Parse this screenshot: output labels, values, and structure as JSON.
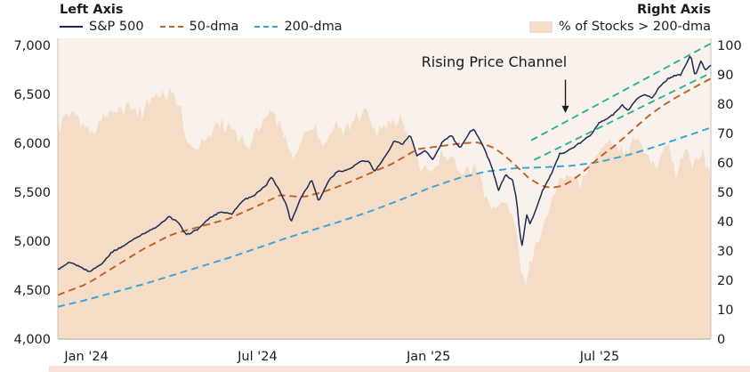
{
  "figure": {
    "left_axis_title": "Left Axis",
    "right_axis_title": "Right Axis",
    "background_color": "#ffffff",
    "plot_background_color": "#f9f1ec",
    "bottom_strip_color": "#f9e3da",
    "text_color": "#1b1b1b",
    "axis_line_color": "#c8c0ba"
  },
  "legend": {
    "left_items": [
      {
        "label": "S&P 500",
        "style": "solid",
        "color": "#1b2a52"
      },
      {
        "label": "50-dma",
        "style": "dashed",
        "color": "#c05f24"
      },
      {
        "label": "200-dma",
        "style": "dashed",
        "color": "#35a3d7"
      }
    ],
    "right_items": [
      {
        "label": "% of Stocks > 200-dma",
        "style": "area",
        "color": "#f5dcc7"
      }
    ]
  },
  "chart_data": {
    "type": "line+area",
    "title": "",
    "x_axis": {
      "unit": "months since Jan 2024 (fractional)",
      "range_months": [
        -1.0,
        21.9
      ],
      "ticks": [
        {
          "m": 0,
          "label": "Jan '24"
        },
        {
          "m": 6,
          "label": "Jul '24"
        },
        {
          "m": 12,
          "label": "Jan '25"
        },
        {
          "m": 18,
          "label": "Jul '25"
        }
      ]
    },
    "left_axis": {
      "title": "S&P 500 index level",
      "min": 4000,
      "max": 7000,
      "ticks": [
        {
          "v": 7000,
          "label": "7,000"
        },
        {
          "v": 6500,
          "label": "6,500"
        },
        {
          "v": 6000,
          "label": "6,000"
        },
        {
          "v": 5500,
          "label": "5,500"
        },
        {
          "v": 5000,
          "label": "5,000"
        },
        {
          "v": 4500,
          "label": "4,500"
        },
        {
          "v": 4000,
          "label": "4,000"
        }
      ]
    },
    "right_axis": {
      "title": "% of Stocks > 200-dma",
      "min": 0,
      "max": 100,
      "ticks": [
        {
          "v": 100,
          "label": "100"
        },
        {
          "v": 90,
          "label": "90"
        },
        {
          "v": 80,
          "label": "80"
        },
        {
          "v": 70,
          "label": "70"
        },
        {
          "v": 60,
          "label": "60"
        },
        {
          "v": 50,
          "label": "50"
        },
        {
          "v": 40,
          "label": "40"
        },
        {
          "v": 30,
          "label": "30"
        },
        {
          "v": 20,
          "label": "20"
        },
        {
          "v": 10,
          "label": "10"
        },
        {
          "v": 0,
          "label": "0"
        }
      ]
    },
    "annotation": {
      "text": "Rising Price Channel",
      "text_month": 14.3,
      "text_value": 6780,
      "arrow_month": 16.8,
      "arrow_from_value": 6650,
      "arrow_to_value": 6310
    },
    "series": [
      {
        "name": "S&P 500",
        "axis": "left",
        "render": "line",
        "dash": "solid",
        "color": "#1b2a52",
        "width": 1.5,
        "points": [
          [
            -1.0,
            4710
          ],
          [
            -0.6,
            4780
          ],
          [
            -0.3,
            4750
          ],
          [
            0.1,
            4690
          ],
          [
            0.5,
            4760
          ],
          [
            0.9,
            4890
          ],
          [
            1.3,
            4950
          ],
          [
            1.7,
            5030
          ],
          [
            2.1,
            5090
          ],
          [
            2.5,
            5150
          ],
          [
            2.9,
            5250
          ],
          [
            3.2,
            5200
          ],
          [
            3.5,
            5060
          ],
          [
            3.9,
            5120
          ],
          [
            4.3,
            5230
          ],
          [
            4.7,
            5300
          ],
          [
            5.1,
            5280
          ],
          [
            5.5,
            5420
          ],
          [
            5.9,
            5470
          ],
          [
            6.3,
            5570
          ],
          [
            6.5,
            5660
          ],
          [
            6.8,
            5500
          ],
          [
            7.05,
            5350
          ],
          [
            7.17,
            5190
          ],
          [
            7.5,
            5430
          ],
          [
            7.9,
            5630
          ],
          [
            8.15,
            5410
          ],
          [
            8.5,
            5620
          ],
          [
            8.8,
            5710
          ],
          [
            9.2,
            5730
          ],
          [
            9.6,
            5810
          ],
          [
            9.9,
            5820
          ],
          [
            10.1,
            5710
          ],
          [
            10.5,
            5870
          ],
          [
            10.8,
            6030
          ],
          [
            11.1,
            5990
          ],
          [
            11.35,
            6090
          ],
          [
            11.6,
            5870
          ],
          [
            11.9,
            5930
          ],
          [
            12.15,
            5830
          ],
          [
            12.5,
            6020
          ],
          [
            12.8,
            6080
          ],
          [
            13.1,
            5950
          ],
          [
            13.45,
            6120
          ],
          [
            13.6,
            6140
          ],
          [
            13.9,
            5980
          ],
          [
            14.2,
            5770
          ],
          [
            14.45,
            5520
          ],
          [
            14.7,
            5680
          ],
          [
            14.95,
            5620
          ],
          [
            15.1,
            5400
          ],
          [
            15.2,
            5070
          ],
          [
            15.28,
            4960
          ],
          [
            15.45,
            5280
          ],
          [
            15.55,
            5170
          ],
          [
            15.75,
            5310
          ],
          [
            16.0,
            5520
          ],
          [
            16.3,
            5680
          ],
          [
            16.6,
            5890
          ],
          [
            16.85,
            5920
          ],
          [
            17.1,
            5960
          ],
          [
            17.4,
            6020
          ],
          [
            17.7,
            6090
          ],
          [
            17.95,
            6200
          ],
          [
            18.2,
            6240
          ],
          [
            18.5,
            6300
          ],
          [
            18.8,
            6390
          ],
          [
            19.0,
            6330
          ],
          [
            19.3,
            6450
          ],
          [
            19.6,
            6500
          ],
          [
            19.85,
            6460
          ],
          [
            20.1,
            6580
          ],
          [
            20.4,
            6660
          ],
          [
            20.6,
            6690
          ],
          [
            20.85,
            6700
          ],
          [
            21.05,
            6820
          ],
          [
            21.2,
            6900
          ],
          [
            21.35,
            6680
          ],
          [
            21.55,
            6840
          ],
          [
            21.7,
            6750
          ],
          [
            21.9,
            6800
          ]
        ]
      },
      {
        "name": "50-dma",
        "axis": "left",
        "render": "line",
        "dash": "dashed",
        "color": "#c05f24",
        "width": 1.9,
        "points": [
          [
            -1.0,
            4450
          ],
          [
            0,
            4560
          ],
          [
            1,
            4740
          ],
          [
            2,
            4920
          ],
          [
            3,
            5070
          ],
          [
            4,
            5150
          ],
          [
            5,
            5230
          ],
          [
            6,
            5360
          ],
          [
            6.8,
            5470
          ],
          [
            7.6,
            5450
          ],
          [
            8.4,
            5510
          ],
          [
            9.2,
            5600
          ],
          [
            10,
            5700
          ],
          [
            10.8,
            5800
          ],
          [
            11.6,
            5940
          ],
          [
            12.4,
            5970
          ],
          [
            13.2,
            6000
          ],
          [
            13.8,
            6010
          ],
          [
            14.4,
            5940
          ],
          [
            15,
            5790
          ],
          [
            15.6,
            5620
          ],
          [
            16.2,
            5540
          ],
          [
            16.8,
            5570
          ],
          [
            17.4,
            5700
          ],
          [
            18,
            5860
          ],
          [
            18.6,
            5990
          ],
          [
            19.2,
            6150
          ],
          [
            19.8,
            6300
          ],
          [
            20.4,
            6420
          ],
          [
            21,
            6520
          ],
          [
            21.5,
            6600
          ],
          [
            21.9,
            6660
          ]
        ]
      },
      {
        "name": "200-dma",
        "axis": "left",
        "render": "line",
        "dash": "dashed",
        "color": "#35a3d7",
        "width": 1.9,
        "points": [
          [
            -1.0,
            4330
          ],
          [
            0,
            4400
          ],
          [
            1,
            4480
          ],
          [
            2,
            4560
          ],
          [
            3,
            4650
          ],
          [
            4,
            4740
          ],
          [
            5,
            4830
          ],
          [
            6,
            4930
          ],
          [
            7,
            5030
          ],
          [
            8,
            5120
          ],
          [
            9,
            5210
          ],
          [
            10,
            5310
          ],
          [
            11,
            5420
          ],
          [
            12,
            5540
          ],
          [
            13,
            5640
          ],
          [
            14,
            5710
          ],
          [
            15,
            5745
          ],
          [
            16,
            5755
          ],
          [
            17,
            5770
          ],
          [
            18,
            5810
          ],
          [
            19,
            5880
          ],
          [
            20,
            5970
          ],
          [
            21,
            6070
          ],
          [
            21.9,
            6160
          ]
        ]
      },
      {
        "name": "% of Stocks > 200-dma",
        "axis": "right",
        "render": "area",
        "color": "#f5dcc7",
        "points": [
          [
            -1.0,
            72
          ],
          [
            -0.6,
            78
          ],
          [
            -0.2,
            74
          ],
          [
            0.2,
            70
          ],
          [
            0.6,
            76
          ],
          [
            1.0,
            78
          ],
          [
            1.4,
            81
          ],
          [
            1.8,
            77
          ],
          [
            2.2,
            82
          ],
          [
            2.6,
            84
          ],
          [
            3.0,
            86
          ],
          [
            3.4,
            76
          ],
          [
            3.7,
            64
          ],
          [
            4.1,
            68
          ],
          [
            4.5,
            73
          ],
          [
            4.9,
            75
          ],
          [
            5.3,
            69
          ],
          [
            5.7,
            67
          ],
          [
            6.1,
            73
          ],
          [
            6.5,
            79
          ],
          [
            6.9,
            71
          ],
          [
            7.2,
            62
          ],
          [
            7.6,
            69
          ],
          [
            8.0,
            74
          ],
          [
            8.3,
            65
          ],
          [
            8.7,
            74
          ],
          [
            9.1,
            72
          ],
          [
            9.5,
            76
          ],
          [
            9.9,
            78
          ],
          [
            10.2,
            71
          ],
          [
            10.6,
            74
          ],
          [
            11.0,
            77
          ],
          [
            11.4,
            68
          ],
          [
            11.7,
            60
          ],
          [
            12.0,
            58
          ],
          [
            12.4,
            64
          ],
          [
            12.8,
            63
          ],
          [
            13.2,
            56
          ],
          [
            13.6,
            61
          ],
          [
            14.0,
            50
          ],
          [
            14.4,
            44
          ],
          [
            14.8,
            47
          ],
          [
            15.1,
            37
          ],
          [
            15.28,
            20
          ],
          [
            15.5,
            24
          ],
          [
            15.8,
            33
          ],
          [
            16.1,
            42
          ],
          [
            16.5,
            53
          ],
          [
            16.9,
            58
          ],
          [
            17.3,
            55
          ],
          [
            17.7,
            61
          ],
          [
            18.1,
            65
          ],
          [
            18.5,
            69
          ],
          [
            18.9,
            63
          ],
          [
            19.3,
            70
          ],
          [
            19.7,
            65
          ],
          [
            20.1,
            61
          ],
          [
            20.4,
            68
          ],
          [
            20.7,
            55
          ],
          [
            21.0,
            66
          ],
          [
            21.3,
            60
          ],
          [
            21.6,
            64
          ],
          [
            21.9,
            57
          ]
        ]
      },
      {
        "name": "Rising Price Channel (upper)",
        "axis": "left",
        "render": "line",
        "dash": "dashed",
        "color": "#1db38c",
        "width": 1.8,
        "points": [
          [
            15.6,
            6030
          ],
          [
            21.9,
            7020
          ]
        ]
      },
      {
        "name": "Rising Price Channel (lower)",
        "axis": "left",
        "render": "line",
        "dash": "dashed",
        "color": "#1db38c",
        "width": 1.8,
        "points": [
          [
            15.7,
            5830
          ],
          [
            21.9,
            6720
          ]
        ]
      }
    ]
  }
}
